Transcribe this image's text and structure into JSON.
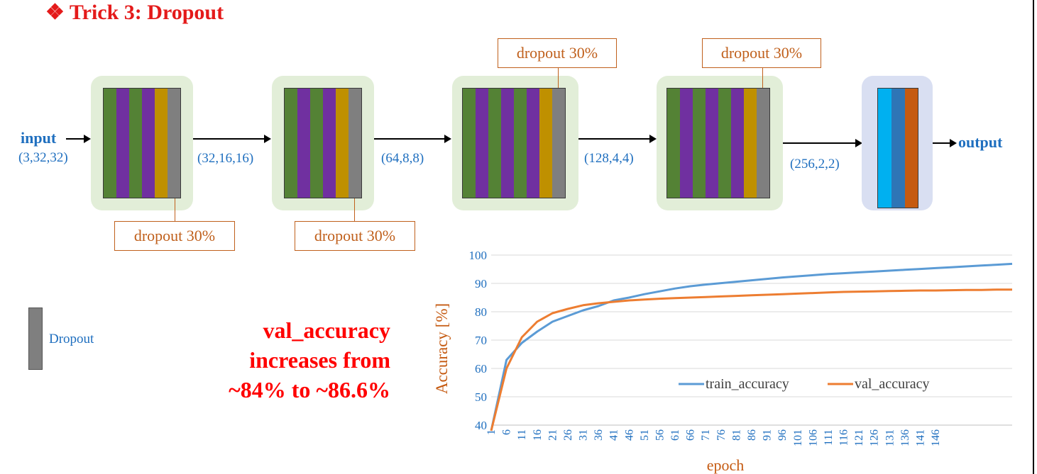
{
  "slide": {
    "title": "❖ Trick 3: Dropout",
    "input_label": "input",
    "input_shape": "(3,32,32)",
    "output_label": "output",
    "shapes": [
      "(32,16,16)",
      "(64,8,8)",
      "(128,4,4)",
      "(256,2,2)"
    ],
    "dropout_callouts": [
      "dropout 30%",
      "dropout 30%",
      "dropout 30%",
      "dropout 30%"
    ],
    "legend_label": "Dropout",
    "note_lines": [
      "val_accuracy",
      "increases from",
      "~84% to ~86.6%"
    ]
  },
  "colors": {
    "conv_green": "#548235",
    "relu_purple": "#7030a0",
    "pool_gold": "#bf9000",
    "dropout_gray": "#7f7f7f",
    "dense_cyan": "#00b0f0",
    "dense_blue": "#2e75b6",
    "dense_orange": "#c55a11",
    "train_line": "#5b9bd5",
    "val_line": "#ed7d31"
  },
  "chart_data": {
    "type": "line",
    "xlabel": "epoch",
    "ylabel": "Accuracy [%]",
    "ylim": [
      40,
      100
    ],
    "yticks": [
      40,
      50,
      60,
      70,
      80,
      90,
      100
    ],
    "xticks": [
      1,
      6,
      11,
      16,
      21,
      26,
      31,
      36,
      41,
      46,
      51,
      56,
      61,
      66,
      71,
      76,
      81,
      86,
      91,
      96,
      101,
      106,
      111,
      116,
      121,
      126,
      131,
      136,
      141,
      146
    ],
    "grid": true,
    "legend_position": "inside-lower-right",
    "x_step": 5,
    "series": [
      {
        "name": "train_accuracy",
        "values": [
          38,
          63,
          69,
          73,
          76.5,
          78.5,
          80.5,
          82,
          84,
          85,
          86.2,
          87.2,
          88.2,
          89,
          89.6,
          90.1,
          90.6,
          91.1,
          91.6,
          92.1,
          92.5,
          92.9,
          93.3,
          93.6,
          93.9,
          94.2,
          94.5,
          94.8,
          95.1,
          95.4,
          95.7,
          96,
          96.3,
          96.6,
          96.9
        ]
      },
      {
        "name": "val_accuracy",
        "values": [
          38,
          60,
          71,
          76.5,
          79.5,
          81,
          82.3,
          83,
          83.5,
          84,
          84.3,
          84.6,
          84.8,
          85,
          85.2,
          85.4,
          85.6,
          85.8,
          86,
          86.2,
          86.4,
          86.6,
          86.8,
          87,
          87.1,
          87.2,
          87.3,
          87.4,
          87.5,
          87.5,
          87.6,
          87.7,
          87.7,
          87.8,
          87.8
        ]
      }
    ]
  }
}
